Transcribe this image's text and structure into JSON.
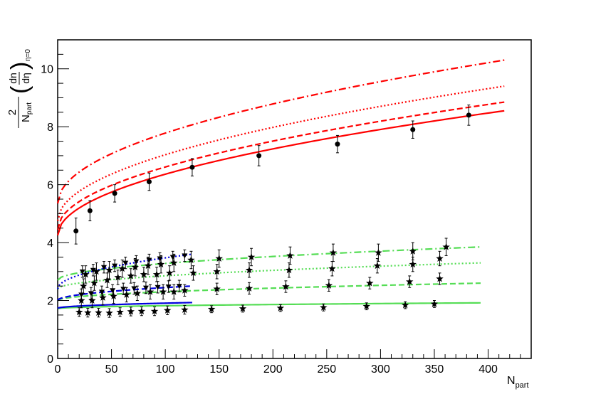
{
  "chart_data": {
    "type": "scatter",
    "title": "",
    "xlabel": "N",
    "xlabel_sub": "part",
    "ylabel": {
      "numerator": "2",
      "denominator_main": "N",
      "denominator_sub": "part",
      "paren_num": "dn",
      "paren_den": "dη",
      "subscript": "η=0"
    },
    "xlim": [
      0,
      440
    ],
    "ylim": [
      0,
      11
    ],
    "x_ticks": [
      0,
      50,
      100,
      150,
      200,
      250,
      300,
      350,
      400
    ],
    "x_tick_labels": [
      "0",
      "50",
      "100",
      "150",
      "200",
      "250",
      "300",
      "350",
      "400"
    ],
    "y_ticks": [
      0,
      2,
      4,
      6,
      8,
      10
    ],
    "y_tick_labels": [
      "0",
      "2",
      "4",
      "6",
      "8",
      "10"
    ],
    "grid": false,
    "legend": "none",
    "colors": {
      "red": "#ff0000",
      "green": "#55dd55",
      "blue": "#0000dd",
      "points": "#000000"
    },
    "series": [
      {
        "kind": "points",
        "marker": "circle",
        "color": "#000000",
        "x": [
          17,
          30,
          53,
          85,
          125,
          187,
          260,
          330,
          382
        ],
        "y": [
          4.4,
          5.1,
          5.7,
          6.1,
          6.6,
          7.0,
          7.4,
          7.9,
          8.4
        ],
        "err": [
          0.45,
          0.35,
          0.3,
          0.3,
          0.3,
          0.35,
          0.3,
          0.3,
          0.35
        ]
      },
      {
        "kind": "points",
        "marker": "star",
        "color": "#000000",
        "x": [
          20,
          28,
          38,
          48,
          58,
          68,
          78,
          90,
          102,
          118,
          143,
          172,
          207,
          247,
          287,
          323,
          350
        ],
        "y": [
          1.6,
          1.58,
          1.58,
          1.57,
          1.6,
          1.62,
          1.63,
          1.63,
          1.66,
          1.68,
          1.7,
          1.72,
          1.74,
          1.76,
          1.8,
          1.84,
          1.88
        ],
        "err": [
          0.15,
          0.15,
          0.15,
          0.15,
          0.15,
          0.15,
          0.15,
          0.15,
          0.15,
          0.15,
          0.12,
          0.12,
          0.12,
          0.12,
          0.12,
          0.12,
          0.12
        ]
      },
      {
        "kind": "points",
        "marker": "star",
        "color": "#000000",
        "x": [
          22,
          32,
          42,
          52,
          64,
          74,
          86,
          98,
          108,
          118,
          148,
          178,
          212,
          252,
          290,
          327,
          355
        ],
        "y": [
          2.0,
          2.0,
          2.1,
          2.15,
          2.2,
          2.25,
          2.3,
          2.3,
          2.3,
          2.35,
          2.4,
          2.42,
          2.48,
          2.52,
          2.6,
          2.65,
          2.75
        ],
        "err": [
          0.25,
          0.25,
          0.25,
          0.25,
          0.25,
          0.25,
          0.25,
          0.25,
          0.25,
          0.2,
          0.2,
          0.2,
          0.2,
          0.2,
          0.2,
          0.2,
          0.2
        ]
      },
      {
        "kind": "points",
        "marker": "star",
        "color": "#000000",
        "x": [
          24,
          34,
          46,
          56,
          68,
          80,
          92,
          104,
          126,
          148,
          178,
          215,
          255,
          297,
          330,
          355
        ],
        "y": [
          2.5,
          2.6,
          2.7,
          2.8,
          2.85,
          2.9,
          2.9,
          2.95,
          2.95,
          3.0,
          3.05,
          3.05,
          3.1,
          3.2,
          3.25,
          3.45
        ],
        "err": [
          0.25,
          0.25,
          0.25,
          0.25,
          0.25,
          0.25,
          0.25,
          0.25,
          0.25,
          0.25,
          0.25,
          0.25,
          0.25,
          0.25,
          0.25,
          0.25
        ]
      },
      {
        "kind": "points",
        "marker": "star",
        "color": "#000000",
        "x": [
          26,
          36,
          48,
          60,
          72,
          84,
          96,
          108,
          124,
          150,
          180,
          216,
          256,
          298,
          330,
          361
        ],
        "y": [
          2.9,
          3.0,
          3.05,
          3.1,
          3.15,
          3.2,
          3.25,
          3.3,
          3.4,
          3.45,
          3.5,
          3.55,
          3.65,
          3.65,
          3.7,
          3.85
        ],
        "err": [
          0.3,
          0.3,
          0.3,
          0.3,
          0.3,
          0.3,
          0.3,
          0.3,
          0.3,
          0.3,
          0.3,
          0.3,
          0.3,
          0.3,
          0.3,
          0.3
        ]
      },
      {
        "kind": "points",
        "marker": "triangle-down",
        "color": "#000000",
        "x": [
          23,
          33,
          43,
          53,
          63,
          73,
          85,
          95,
          107,
          118
        ],
        "y": [
          3.0,
          3.05,
          3.15,
          3.2,
          3.3,
          3.35,
          3.4,
          3.45,
          3.5,
          3.55
        ],
        "err": [
          0.2,
          0.2,
          0.2,
          0.2,
          0.2,
          0.2,
          0.2,
          0.2,
          0.2,
          0.2
        ]
      },
      {
        "kind": "points",
        "marker": "triangle-down",
        "color": "#000000",
        "x": [
          22,
          31,
          41,
          51,
          61,
          71,
          82,
          93,
          103,
          113
        ],
        "y": [
          2.2,
          2.25,
          2.3,
          2.35,
          2.4,
          2.42,
          2.44,
          2.46,
          2.48,
          2.5
        ],
        "err": [
          0.2,
          0.2,
          0.2,
          0.2,
          0.2,
          0.2,
          0.2,
          0.2,
          0.2,
          0.2
        ]
      },
      {
        "kind": "curve",
        "color": "#ff0000",
        "style": "solid",
        "x0": 0,
        "x1": 415,
        "y0": 4.25,
        "y1": 8.55,
        "p": 0.5
      },
      {
        "kind": "curve",
        "color": "#ff0000",
        "style": "dashed",
        "x0": 0,
        "x1": 415,
        "y0": 4.45,
        "y1": 8.85,
        "p": 0.5
      },
      {
        "kind": "curve",
        "color": "#ff0000",
        "style": "dotted",
        "x0": 0,
        "x1": 415,
        "y0": 4.75,
        "y1": 9.4,
        "p": 0.5
      },
      {
        "kind": "curve",
        "color": "#ff0000",
        "style": "dashdot",
        "x0": 0,
        "x1": 415,
        "y0": 5.35,
        "y1": 10.3,
        "p": 0.5
      },
      {
        "kind": "curve",
        "color": "#55dd55",
        "style": "solid",
        "x0": 0,
        "x1": 393,
        "y0": 1.72,
        "y1": 1.92,
        "p": 0.5
      },
      {
        "kind": "curve",
        "color": "#55dd55",
        "style": "dashed",
        "x0": 0,
        "x1": 393,
        "y0": 2.0,
        "y1": 2.6,
        "p": 0.5
      },
      {
        "kind": "curve",
        "color": "#55dd55",
        "style": "dotted",
        "x0": 0,
        "x1": 393,
        "y0": 2.4,
        "y1": 3.3,
        "p": 0.5
      },
      {
        "kind": "curve",
        "color": "#55dd55",
        "style": "dashdot",
        "x0": 0,
        "x1": 393,
        "y0": 2.7,
        "y1": 3.85,
        "p": 0.5
      },
      {
        "kind": "curve",
        "color": "#0000dd",
        "style": "solid",
        "x0": 0,
        "x1": 125,
        "y0": 1.73,
        "y1": 1.93,
        "p": 0.5
      },
      {
        "kind": "curve",
        "color": "#0000dd",
        "style": "dashed",
        "x0": 0,
        "x1": 125,
        "y0": 2.0,
        "y1": 2.5,
        "p": 0.5
      },
      {
        "kind": "curve",
        "color": "#0000dd",
        "style": "dotted",
        "x0": 0,
        "x1": 125,
        "y0": 2.4,
        "y1": 3.6,
        "p": 0.5
      }
    ]
  }
}
